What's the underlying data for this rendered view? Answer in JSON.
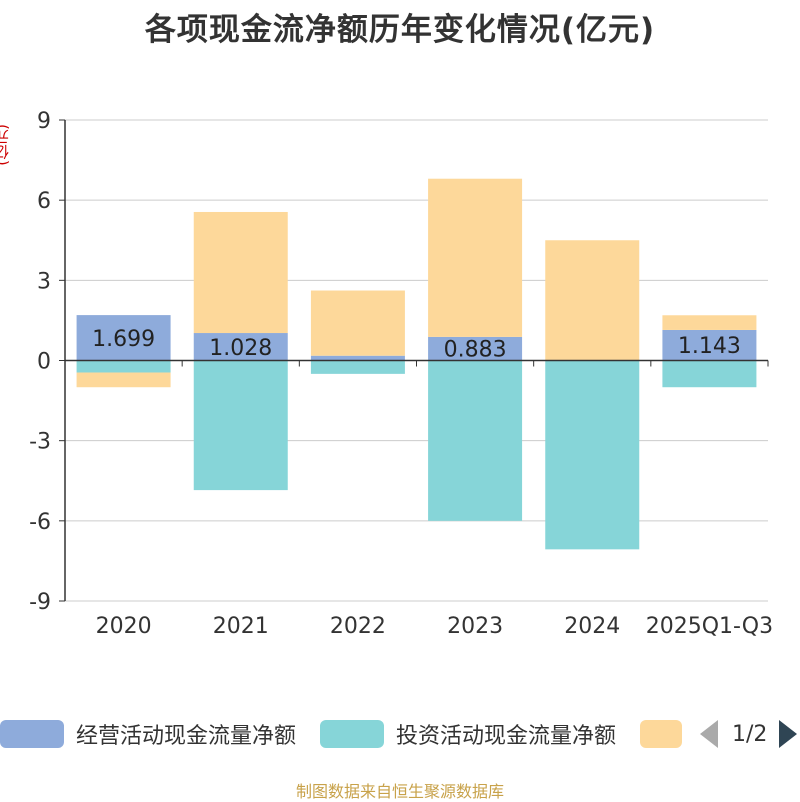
{
  "title": "各项现金流净额历年变化情况(亿元)",
  "y_unit": "(亿元)",
  "footer": "制图数据来自恒生聚源数据库",
  "legend": {
    "items": [
      {
        "label": "经营活动现金流量净额",
        "color": "#8eabdb"
      },
      {
        "label": "投资活动现金流量净额",
        "color": "#86d5d8"
      },
      {
        "label": "",
        "color": "#fdd89a"
      }
    ],
    "page": "1/2"
  },
  "chart_data": {
    "type": "bar",
    "stacked": true,
    "categories": [
      "2020",
      "2021",
      "2022",
      "2023",
      "2024",
      "2025Q1-Q3"
    ],
    "ylim": [
      -9,
      9
    ],
    "yticks": [
      9,
      6,
      3,
      0,
      -3,
      -6,
      -9
    ],
    "grid": true,
    "legend_position": "bottom",
    "series": [
      {
        "name": "经营活动现金流量净额",
        "color": "#8eabdb",
        "values": [
          1.699,
          1.028,
          0.179,
          0.883,
          -0.017,
          1.143
        ],
        "labels": [
          "1.699",
          "1.028",
          "",
          "0.883",
          "",
          "1.143"
        ]
      },
      {
        "name": "投资活动现金流量净额",
        "color": "#86d5d8",
        "values": [
          -0.45,
          -4.85,
          -0.5,
          -6.0,
          -7.05,
          -1.0
        ]
      },
      {
        "name": "",
        "color": "#fdd89a",
        "values": [
          -0.55,
          4.53,
          2.44,
          5.92,
          4.5,
          0.55
        ]
      }
    ]
  }
}
